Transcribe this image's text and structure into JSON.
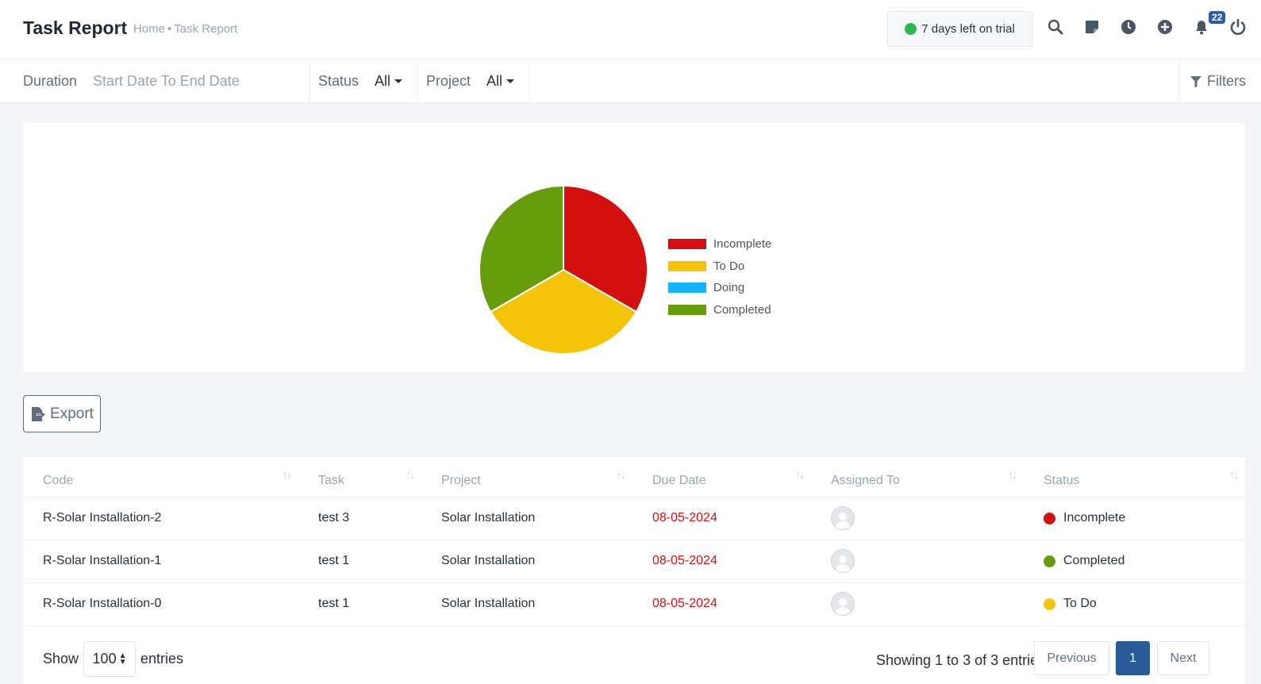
{
  "header": {
    "title": "Task Report",
    "breadcrumb": [
      "Home",
      "Task Report"
    ],
    "trial_text": "7 days left on trial",
    "notification_count": "22",
    "icons": [
      "search-icon",
      "sticky-note-icon",
      "clock-icon",
      "plus-circle-icon",
      "bell-icon",
      "power-icon"
    ]
  },
  "filters": {
    "duration_label": "Duration",
    "duration_value": "Start Date To End Date",
    "status_label": "Status",
    "status_value": "All",
    "project_label": "Project",
    "project_value": "All",
    "filters_label": "Filters"
  },
  "chart_data": {
    "type": "pie",
    "categories": [
      "Incomplete",
      "To Do",
      "Doing",
      "Completed"
    ],
    "values": [
      1,
      1,
      0,
      1
    ],
    "colors": [
      "#d30f0f",
      "#f5c308",
      "#16b1ff",
      "#679c0d"
    ],
    "legend_position": "right"
  },
  "export_label": "Export",
  "table": {
    "columns": [
      "Code",
      "Task",
      "Project",
      "Due Date",
      "Assigned To",
      "Status"
    ],
    "rows": [
      {
        "code": "R-Solar Installation-2",
        "task": "test 3",
        "project": "Solar Installation",
        "due": "08-05-2024",
        "status": "Incomplete",
        "status_color": "#d30f0f"
      },
      {
        "code": "R-Solar Installation-1",
        "task": "test 1",
        "project": "Solar Installation",
        "due": "08-05-2024",
        "status": "Completed",
        "status_color": "#679c0d"
      },
      {
        "code": "R-Solar Installation-0",
        "task": "test 1",
        "project": "Solar Installation",
        "due": "08-05-2024",
        "status": "To Do",
        "status_color": "#f5c308"
      }
    ]
  },
  "footer": {
    "show_label": "Show",
    "page_length": "100",
    "entries_label": "entries",
    "info": "Showing 1 to 3 of 3 entries",
    "previous": "Previous",
    "current_page": "1",
    "next": "Next"
  }
}
